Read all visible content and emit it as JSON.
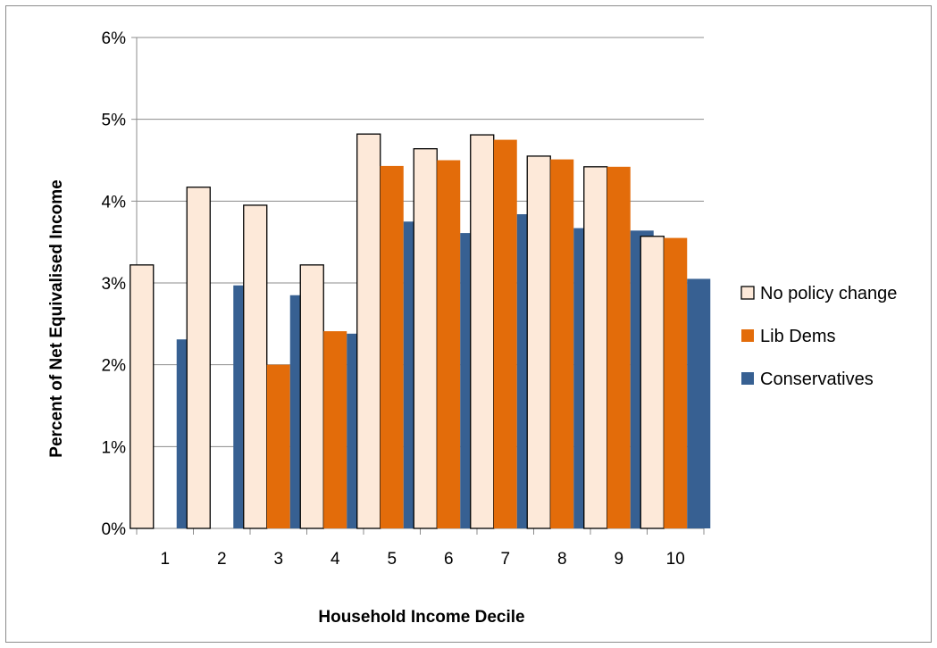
{
  "chart_data": {
    "type": "bar",
    "title": "",
    "xlabel": "Household Income Decile",
    "ylabel": "Percent of Net Equivalised Income",
    "ylim": [
      0,
      6
    ],
    "y_tick_values": [
      0,
      1,
      2,
      3,
      4,
      5,
      6
    ],
    "y_tick_labels": [
      "0%",
      "1%",
      "2%",
      "3%",
      "4%",
      "5%",
      "6%"
    ],
    "categories": [
      "1",
      "2",
      "3",
      "4",
      "5",
      "6",
      "7",
      "8",
      "9",
      "10"
    ],
    "grid": "horizontal",
    "legend_position": "right",
    "series": [
      {
        "name": "No policy change",
        "color": "#fde9d9",
        "stroke": "#000000",
        "values": [
          3.22,
          4.17,
          3.95,
          3.22,
          4.82,
          4.64,
          4.81,
          4.55,
          4.42,
          3.57
        ]
      },
      {
        "name": "Lib Dems",
        "color": "#e36c0a",
        "stroke": "none",
        "values": [
          0,
          0,
          2.0,
          2.41,
          4.43,
          4.5,
          4.75,
          4.51,
          4.42,
          3.55
        ]
      },
      {
        "name": "Conservatives",
        "color": "#376092",
        "stroke": "none",
        "values": [
          2.31,
          2.97,
          2.85,
          2.38,
          3.75,
          3.61,
          3.84,
          3.67,
          3.64,
          3.05
        ]
      }
    ]
  }
}
